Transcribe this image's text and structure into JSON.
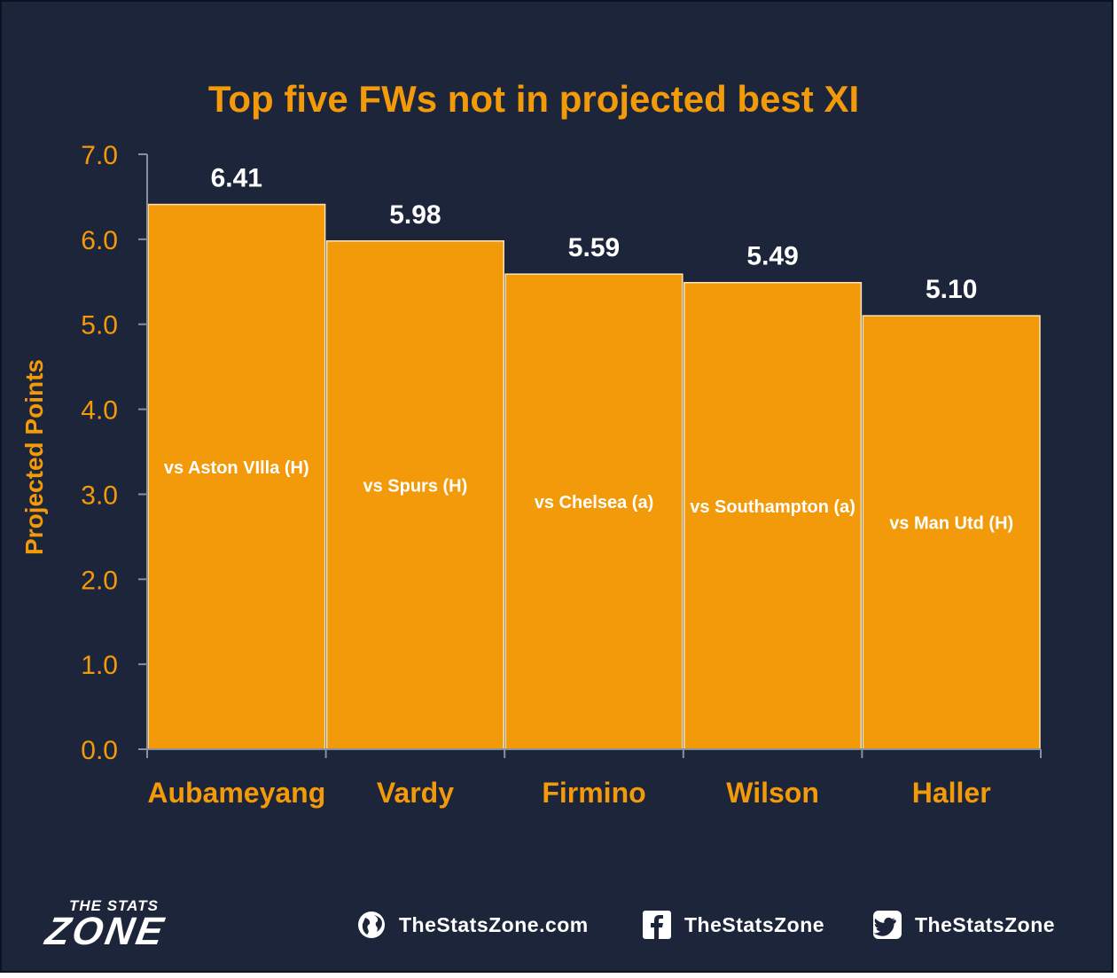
{
  "chart_data": {
    "type": "bar",
    "title": "Top five FWs not in projected best XI",
    "ylabel": "Projected Points",
    "xlabel": "",
    "ylim": [
      0,
      7
    ],
    "yticks": [
      "0.0",
      "1.0",
      "2.0",
      "3.0",
      "4.0",
      "5.0",
      "6.0",
      "7.0"
    ],
    "categories": [
      "Aubameyang",
      "Vardy",
      "Firmino",
      "Wilson",
      "Haller"
    ],
    "values": [
      6.41,
      5.98,
      5.59,
      5.49,
      5.1
    ],
    "value_labels": [
      "6.41",
      "5.98",
      "5.59",
      "5.49",
      "5.10"
    ],
    "bar_labels": [
      "vs Aston VIlla (H)",
      "vs Spurs (H)",
      "vs Chelsea (a)",
      "vs Southampton (a)",
      "vs Man Utd (H)"
    ],
    "grid": false,
    "colors": {
      "bar": "#f39a0a",
      "bar_edge": "#fde3b8",
      "accent": "#f39a0a",
      "background": "#1d253a",
      "axis": "#8a8f9c",
      "value_text": "#ffffff"
    }
  },
  "footer": {
    "brand_top": "THE STATS",
    "brand_main": "ZONE",
    "website": "TheStatsZone.com",
    "facebook": "TheStatsZone",
    "twitter": "TheStatsZone",
    "icons": [
      "globe-icon",
      "facebook-icon",
      "twitter-icon"
    ]
  }
}
